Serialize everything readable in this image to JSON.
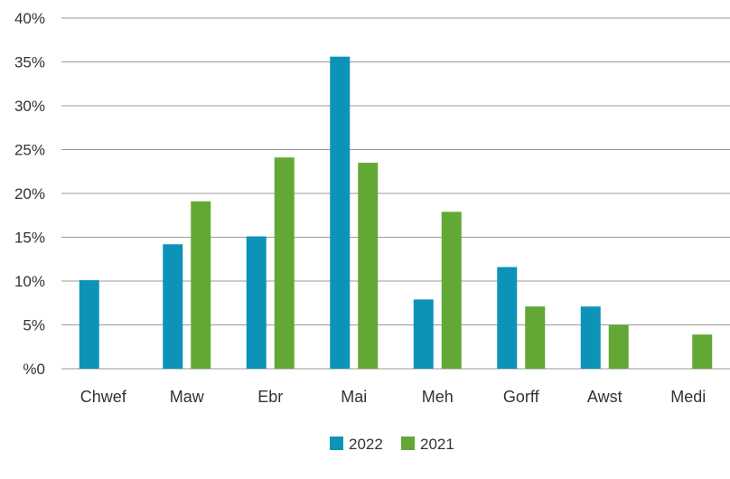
{
  "chart_data": {
    "type": "bar",
    "categories": [
      "Chwef",
      "Maw",
      "Ebr",
      "Mai",
      "Meh",
      "Gorff",
      "Awst",
      "Medi"
    ],
    "series": [
      {
        "name": "2022",
        "color": "#0E93B8",
        "values": [
          10.1,
          14.2,
          15.1,
          35.6,
          7.9,
          11.6,
          7.1,
          null
        ]
      },
      {
        "name": "2021",
        "color": "#63A834",
        "values": [
          null,
          19.1,
          24.1,
          23.5,
          17.9,
          7.1,
          5.0,
          3.9
        ]
      }
    ],
    "y_ticks": [
      "%0",
      "5%",
      "10%",
      "15%",
      "20%",
      "25%",
      "30%",
      "35%",
      "40%"
    ],
    "ylim": [
      0,
      40
    ],
    "grid": true,
    "legend_position": "bottom-center"
  }
}
